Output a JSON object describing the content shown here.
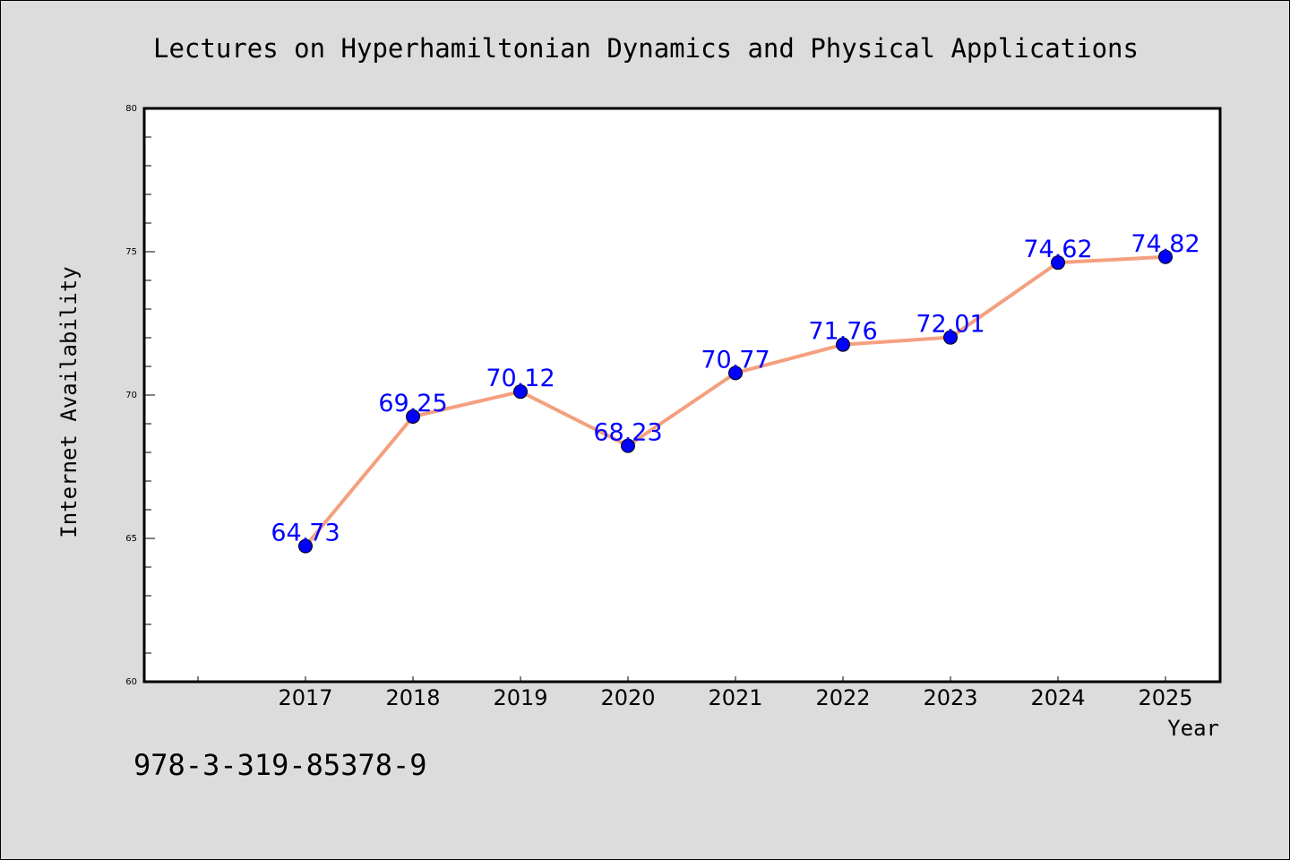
{
  "colors": {
    "background": "#dcdcdc",
    "plot_background": "#ffffff",
    "line": "#f4a07f",
    "point": "#0000ff",
    "data_label": "#0000ff",
    "text": "#000000"
  },
  "isbn": "978-3-319-85378-9",
  "chart_data": {
    "type": "line",
    "title": "Lectures on Hyperhamiltonian Dynamics and Physical Applications",
    "xlabel": "Year",
    "ylabel": "Internet Availability",
    "categories": [
      "2017",
      "2018",
      "2019",
      "2020",
      "2021",
      "2022",
      "2023",
      "2024",
      "2025"
    ],
    "series": [
      {
        "values": [
          64.73,
          69.25,
          70.12,
          68.23,
          70.77,
          71.76,
          72.01,
          74.62,
          74.82
        ],
        "labels": [
          "64.73",
          "69.25",
          "70.12",
          "68.23",
          "70.77",
          "71.76",
          "72.01",
          "74.62",
          "74.82"
        ]
      }
    ],
    "ylim": [
      60,
      80
    ],
    "yticks": [
      60,
      65,
      70,
      75,
      80
    ],
    "ytick_labels": [
      "60",
      "65",
      "70",
      "75",
      "80"
    ],
    "yminor_step": 1,
    "grid": false,
    "legend": "none"
  }
}
